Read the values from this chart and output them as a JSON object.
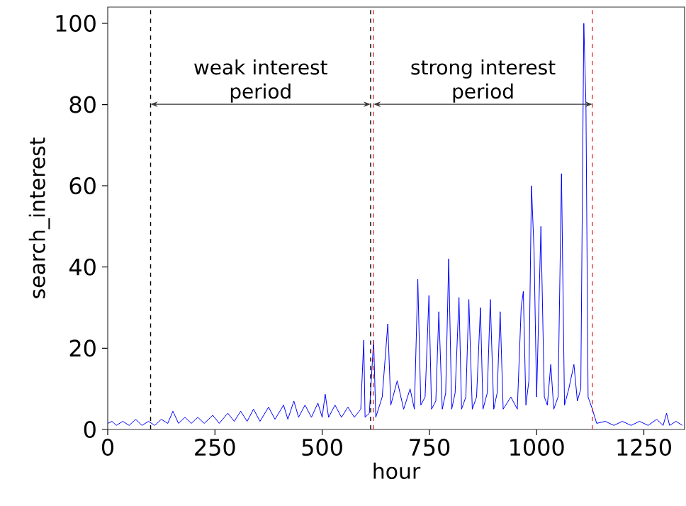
{
  "chart_data": {
    "type": "line",
    "xlabel": "hour",
    "ylabel": "search_interest",
    "xlim": [
      0,
      1345
    ],
    "ylim": [
      0,
      104
    ],
    "xticks": [
      0,
      250,
      500,
      750,
      1000,
      1250
    ],
    "yticks": [
      0,
      20,
      40,
      60,
      80,
      100
    ],
    "marker": "none",
    "line_style": "solid",
    "series": [
      {
        "color": "#0000ff",
        "x": [
          0,
          10,
          20,
          35,
          50,
          65,
          80,
          95,
          110,
          125,
          140,
          152,
          165,
          180,
          195,
          210,
          225,
          245,
          260,
          280,
          295,
          310,
          325,
          340,
          355,
          375,
          390,
          410,
          420,
          434,
          445,
          460,
          475,
          490,
          500,
          507,
          515,
          530,
          545,
          560,
          575,
          590,
          597,
          600,
          610,
          620,
          625,
          640,
          653,
          660,
          675,
          690,
          705,
          715,
          723,
          730,
          740,
          749,
          755,
          765,
          772,
          780,
          788,
          795,
          802,
          810,
          819,
          825,
          835,
          842,
          850,
          860,
          869,
          875,
          885,
          892,
          900,
          908,
          915,
          922,
          940,
          955,
          964,
          969,
          975,
          982,
          988,
          994,
          1000,
          1010,
          1018,
          1025,
          1033,
          1040,
          1050,
          1058,
          1065,
          1075,
          1087,
          1095,
          1103,
          1110,
          1115,
          1120,
          1130,
          1140,
          1160,
          1180,
          1200,
          1220,
          1240,
          1260,
          1280,
          1295,
          1303,
          1310,
          1325,
          1340
        ],
        "values": [
          1.5,
          2,
          1,
          2,
          1,
          2.5,
          1,
          2,
          1,
          2.5,
          1.5,
          4.5,
          1.5,
          3,
          1.5,
          3,
          1.5,
          3.5,
          1.5,
          4,
          2,
          4.5,
          2,
          5,
          2,
          5.5,
          2.5,
          6,
          2.5,
          7,
          3,
          6,
          3,
          6.5,
          3,
          8.7,
          3,
          6,
          3,
          5.5,
          3,
          5,
          22,
          3,
          4,
          22,
          3,
          8,
          26,
          6,
          12,
          5,
          10,
          5,
          37,
          6,
          8,
          33,
          5,
          7,
          29,
          5,
          9,
          42,
          5,
          9,
          32.5,
          5,
          8,
          32,
          5,
          8,
          30,
          5,
          9,
          32,
          5,
          9,
          29,
          5,
          8,
          5,
          30,
          34,
          6,
          12,
          60,
          44,
          8,
          50,
          8,
          6,
          16,
          5,
          8,
          63,
          6,
          10,
          16,
          7,
          10,
          100,
          80,
          8,
          5,
          1.5,
          2,
          1,
          2,
          1,
          2,
          1,
          2.5,
          1,
          4,
          1,
          2,
          1
        ]
      }
    ],
    "ref_lines": [
      {
        "axis": "x",
        "value": 100,
        "color": "#000000",
        "line_style": "dashed"
      },
      {
        "axis": "x",
        "value": 613,
        "color": "#000000",
        "line_style": "dashed"
      },
      {
        "axis": "x",
        "value": 620,
        "color": "#e8363a",
        "line_style": "dashed"
      },
      {
        "axis": "x",
        "value": 1130,
        "color": "#e8363a",
        "line_style": "dashed"
      }
    ],
    "annotations": [
      "weak interest period",
      "strong interest period"
    ]
  }
}
